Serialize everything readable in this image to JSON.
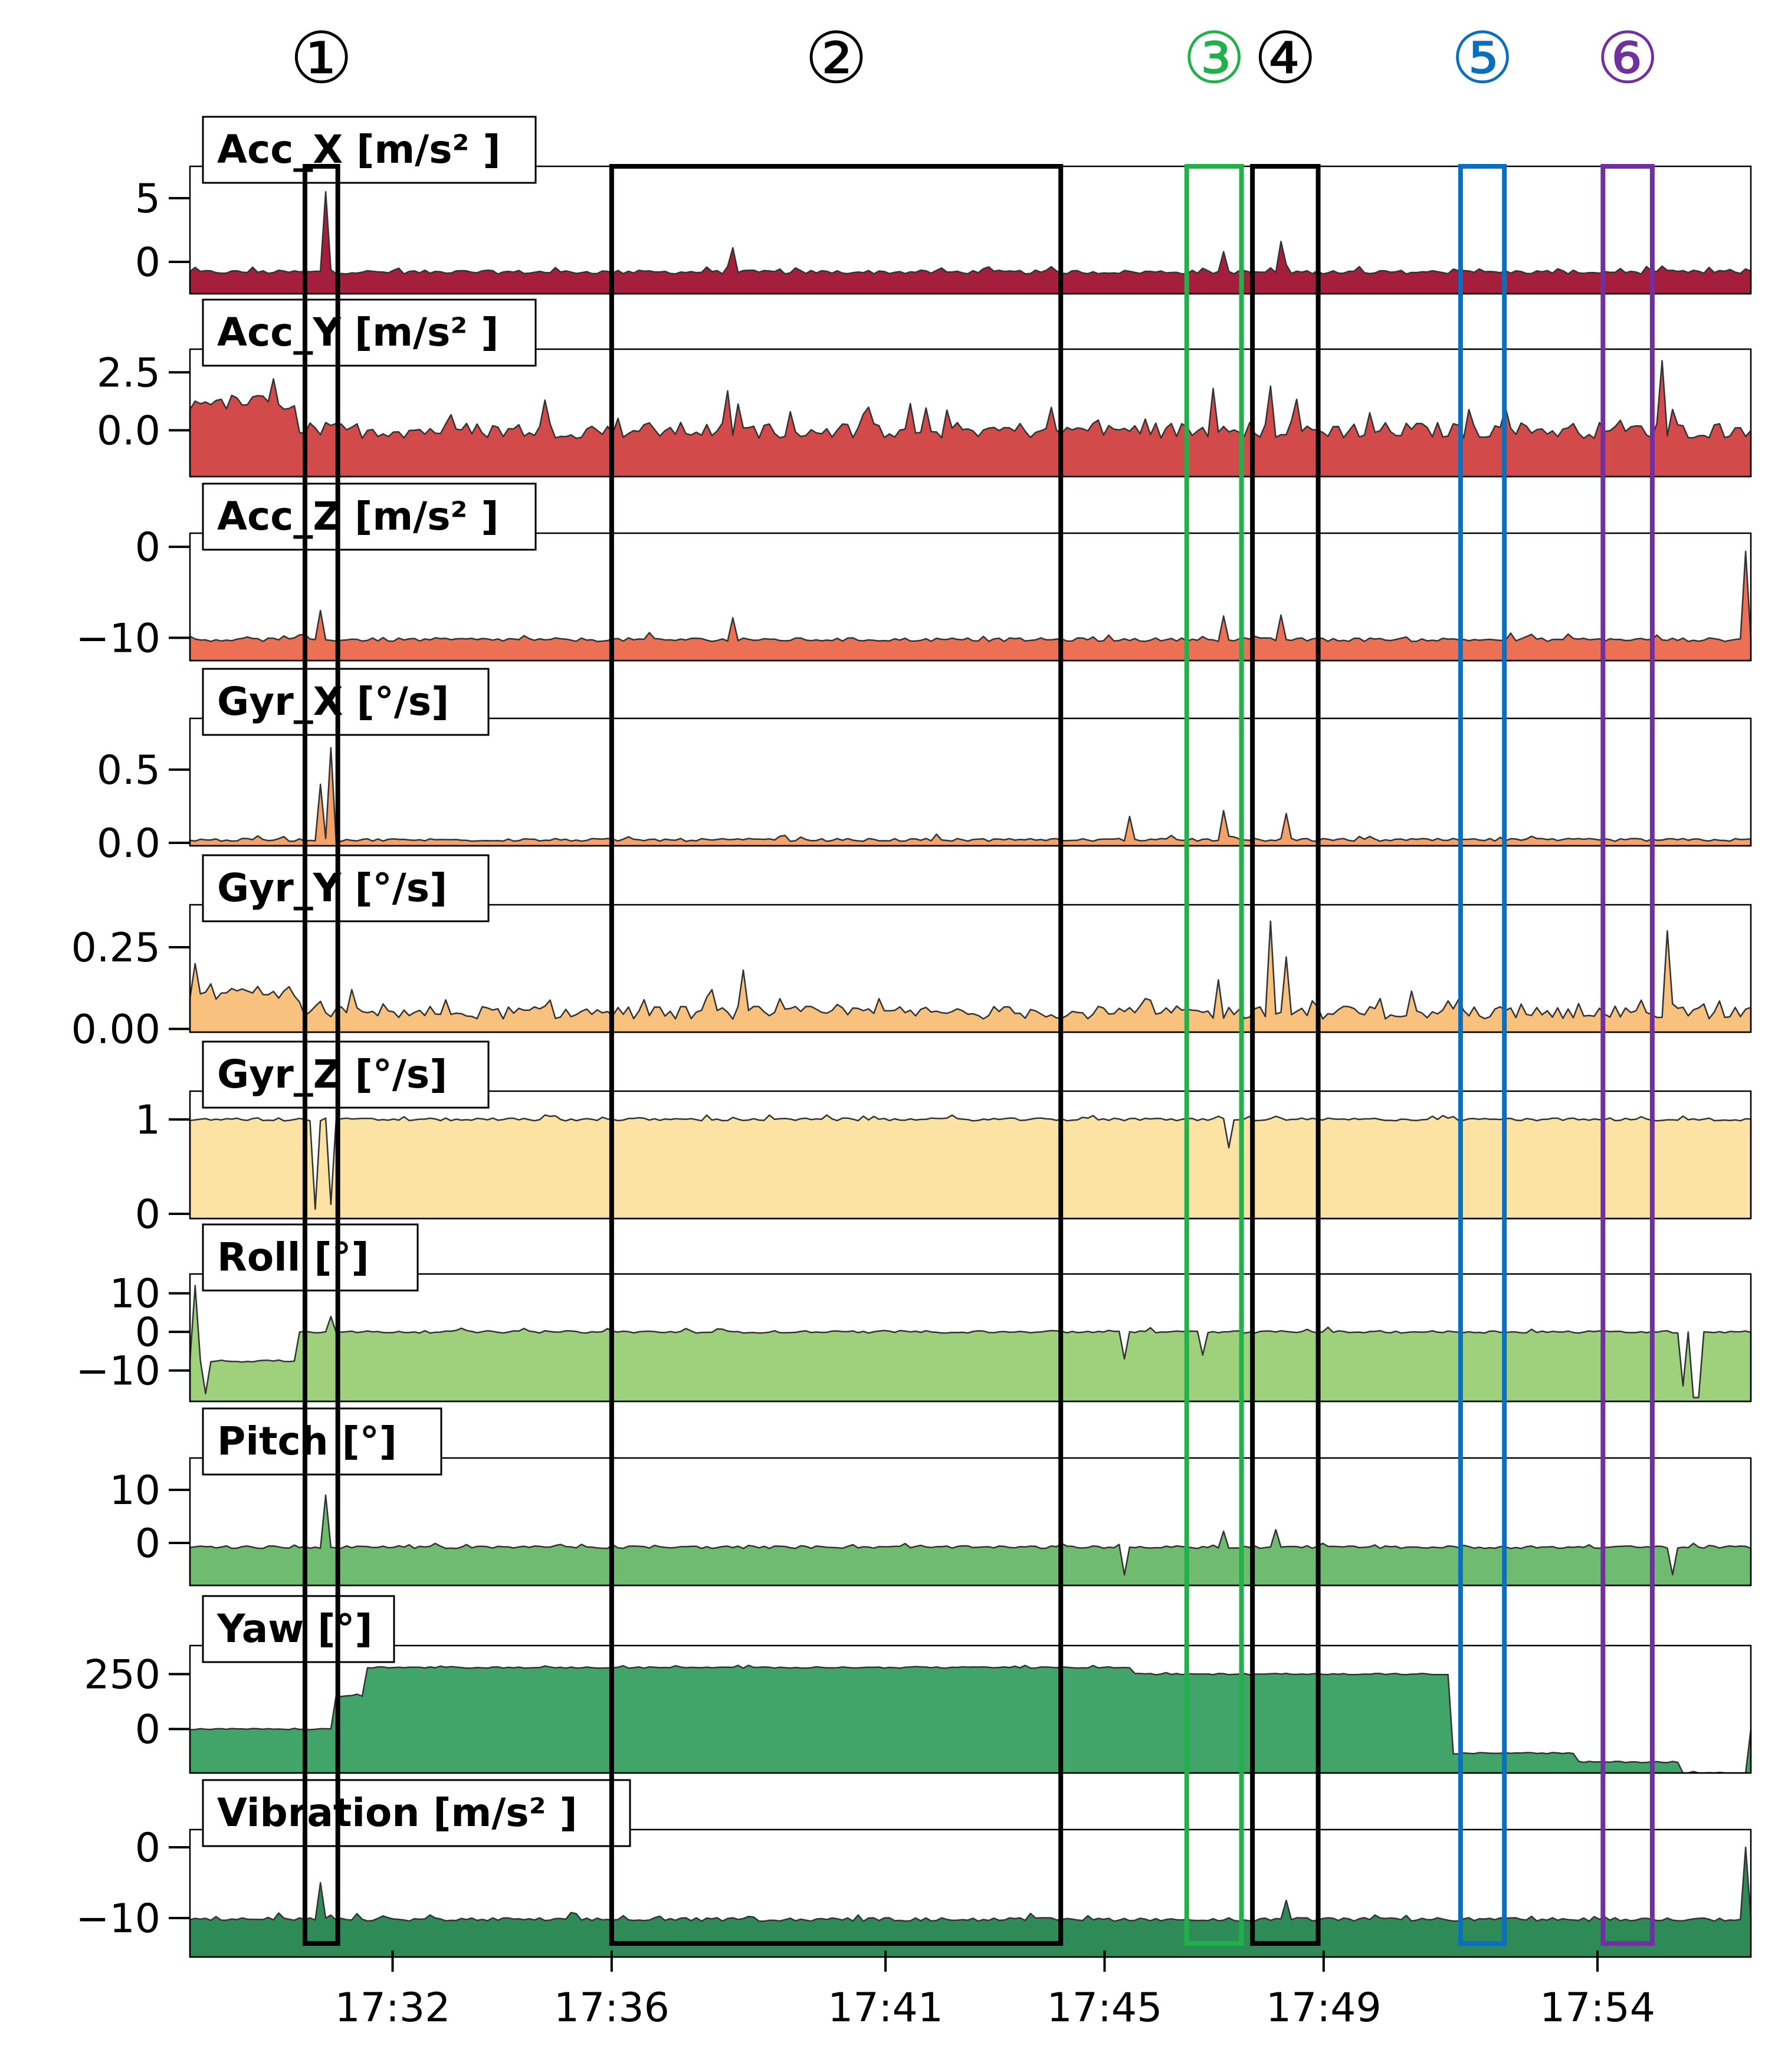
{
  "chart_data": {
    "type": "area",
    "x_ticks": [
      "17:32",
      "17:36",
      "17:41",
      "17:45",
      "17:49",
      "17:54"
    ],
    "x_tick_minutes": [
      32,
      36,
      41,
      45,
      49,
      54
    ],
    "x_range_minutes": [
      28.3,
      56.8
    ],
    "n_samples": 300,
    "series": [
      {
        "name": "Acc_X [m/s² ]",
        "color": "#a51f3c",
        "yticks": [
          "5",
          "0"
        ],
        "ytick_values": [
          5,
          0
        ],
        "ylim": [
          -2.5,
          7.5
        ],
        "baseline": -0.8,
        "noise": 0.3,
        "events": [
          {
            "at": 30.8,
            "value": 5.5
          },
          {
            "at": 38.2,
            "value": 1.1
          },
          {
            "at": 47.2,
            "value": 0.8
          },
          {
            "at": 48.2,
            "value": 1.6
          }
        ]
      },
      {
        "name": "Acc_Y [m/s² ]",
        "color": "#d24a4a",
        "yticks": [
          "2.5",
          "0.0"
        ],
        "ytick_values": [
          2.5,
          0.0
        ],
        "ylim": [
          -2.0,
          3.5
        ],
        "baseline": 0.0,
        "noise": 0.7,
        "segments": [
          {
            "from": 28.3,
            "to": 30.3,
            "value": 1.2
          }
        ],
        "events": [
          {
            "at": 34.8,
            "value": 1.3
          },
          {
            "at": 38.1,
            "value": 1.7
          },
          {
            "at": 47.0,
            "value": 1.8
          },
          {
            "at": 48.0,
            "value": 1.9
          },
          {
            "at": 55.2,
            "value": 3.0
          }
        ]
      },
      {
        "name": "Acc_Z [m/s² ]",
        "color": "#ec7154",
        "yticks": [
          "0",
          "−10"
        ],
        "ytick_values": [
          0,
          -10
        ],
        "ylim": [
          -12.5,
          1.5
        ],
        "baseline": -10.2,
        "noise": 0.4,
        "events": [
          {
            "at": 30.7,
            "value": -7.0
          },
          {
            "at": 38.2,
            "value": -7.8
          },
          {
            "at": 47.2,
            "value": -7.6
          },
          {
            "at": 48.2,
            "value": -7.5
          },
          {
            "at": 56.7,
            "value": -0.5
          }
        ]
      },
      {
        "name": "Gyr_X [°/s]",
        "color": "#f4a269",
        "yticks": [
          "0.5",
          "0.0"
        ],
        "ytick_values": [
          0.5,
          0.0
        ],
        "ylim": [
          -0.02,
          0.85
        ],
        "baseline": 0.02,
        "noise": 0.02,
        "events": [
          {
            "at": 30.7,
            "value": 0.4
          },
          {
            "at": 30.9,
            "value": 0.65
          },
          {
            "at": 45.5,
            "value": 0.18
          },
          {
            "at": 47.2,
            "value": 0.22
          },
          {
            "at": 48.3,
            "value": 0.2
          }
        ]
      },
      {
        "name": "Gyr_Y [°/s]",
        "color": "#f8c17e",
        "yticks": [
          "0.25",
          "0.00"
        ],
        "ytick_values": [
          0.25,
          0.0
        ],
        "ylim": [
          -0.01,
          0.38
        ],
        "baseline": 0.05,
        "noise": 0.04,
        "segments": [
          {
            "from": 28.3,
            "to": 30.3,
            "value": 0.11
          }
        ],
        "events": [
          {
            "at": 28.4,
            "value": 0.2
          },
          {
            "at": 38.4,
            "value": 0.18
          },
          {
            "at": 47.1,
            "value": 0.15
          },
          {
            "at": 48.0,
            "value": 0.33
          },
          {
            "at": 48.3,
            "value": 0.22
          },
          {
            "at": 55.3,
            "value": 0.3
          }
        ]
      },
      {
        "name": "Gyr_Z [°/s]",
        "color": "#fde3a3",
        "yticks": [
          "1",
          "0"
        ],
        "ytick_values": [
          1,
          0
        ],
        "ylim": [
          -0.05,
          1.3
        ],
        "baseline": 1.0,
        "noise": 0.03,
        "dips": [
          {
            "at": 30.6,
            "value": 0.05
          },
          {
            "at": 30.9,
            "value": 0.1
          },
          {
            "at": 47.3,
            "value": 0.7
          }
        ]
      },
      {
        "name": "Roll [°]",
        "color": "#9fd17d",
        "yticks": [
          "10",
          "0",
          "−10"
        ],
        "ytick_values": [
          10,
          0,
          -10
        ],
        "ylim": [
          -18,
          15
        ],
        "baseline": 0.0,
        "noise": 0.6,
        "segments": [
          {
            "from": 28.3,
            "to": 30.3,
            "value": -7.5
          }
        ],
        "events": [
          {
            "at": 28.4,
            "value": 12
          },
          {
            "at": 28.6,
            "value": -16
          },
          {
            "at": 30.9,
            "value": 4
          }
        ],
        "dips": [
          {
            "at": 45.4,
            "value": -7
          },
          {
            "at": 46.8,
            "value": -6
          },
          {
            "at": 55.6,
            "value": -14
          },
          {
            "at": 55.8,
            "value": -17
          }
        ]
      },
      {
        "name": "Pitch [°]",
        "color": "#6fbb6f",
        "yticks": [
          "10",
          "0"
        ],
        "ytick_values": [
          10,
          0
        ],
        "ylim": [
          -8,
          16
        ],
        "baseline": -0.8,
        "noise": 0.5,
        "events": [
          {
            "at": 30.8,
            "value": 9
          },
          {
            "at": 47.2,
            "value": 2.2
          },
          {
            "at": 48.1,
            "value": 2.5
          }
        ],
        "dips": [
          {
            "at": 45.4,
            "value": -6
          },
          {
            "at": 55.4,
            "value": -6
          }
        ]
      },
      {
        "name": "Yaw [°]",
        "color": "#41a56a",
        "yticks": [
          "250",
          "0"
        ],
        "ytick_values": [
          250,
          0
        ],
        "ylim": [
          -200,
          380
        ],
        "baseline": 0,
        "noise": 6,
        "segments": [
          {
            "from": 28.3,
            "to": 30.9,
            "value": 0
          },
          {
            "from": 30.9,
            "to": 31.5,
            "value": 150
          },
          {
            "from": 31.5,
            "to": 45.5,
            "value": 280
          },
          {
            "from": 45.5,
            "to": 51.3,
            "value": 250
          },
          {
            "from": 51.3,
            "to": 53.6,
            "value": -110
          },
          {
            "from": 53.6,
            "to": 55.5,
            "value": -150
          },
          {
            "from": 55.5,
            "to": 56.8,
            "value": -200
          }
        ]
      },
      {
        "name": "Vibration [m/s² ]",
        "color": "#2e8a57",
        "yticks": [
          "0",
          "−10"
        ],
        "ytick_values": [
          0,
          -10
        ],
        "ylim": [
          -15.5,
          2.5
        ],
        "baseline": -10.2,
        "noise": 0.5,
        "events": [
          {
            "at": 30.7,
            "value": -5.0
          },
          {
            "at": 48.3,
            "value": -7.5
          },
          {
            "at": 56.7,
            "value": 0.0
          }
        ]
      }
    ]
  },
  "markers": [
    {
      "label": "①",
      "color": "#000000",
      "from": 30.4,
      "to": 31.0
    },
    {
      "label": "②",
      "color": "#000000",
      "from": 36.0,
      "to": 44.2
    },
    {
      "label": "③",
      "color": "#22b04b",
      "from": 46.5,
      "to": 47.5
    },
    {
      "label": "④",
      "color": "#000000",
      "from": 47.7,
      "to": 48.9
    },
    {
      "label": "⑤",
      "color": "#0b6fc0",
      "from": 51.5,
      "to": 52.3
    },
    {
      "label": "⑥",
      "color": "#7030a0",
      "from": 54.1,
      "to": 55.0
    }
  ]
}
